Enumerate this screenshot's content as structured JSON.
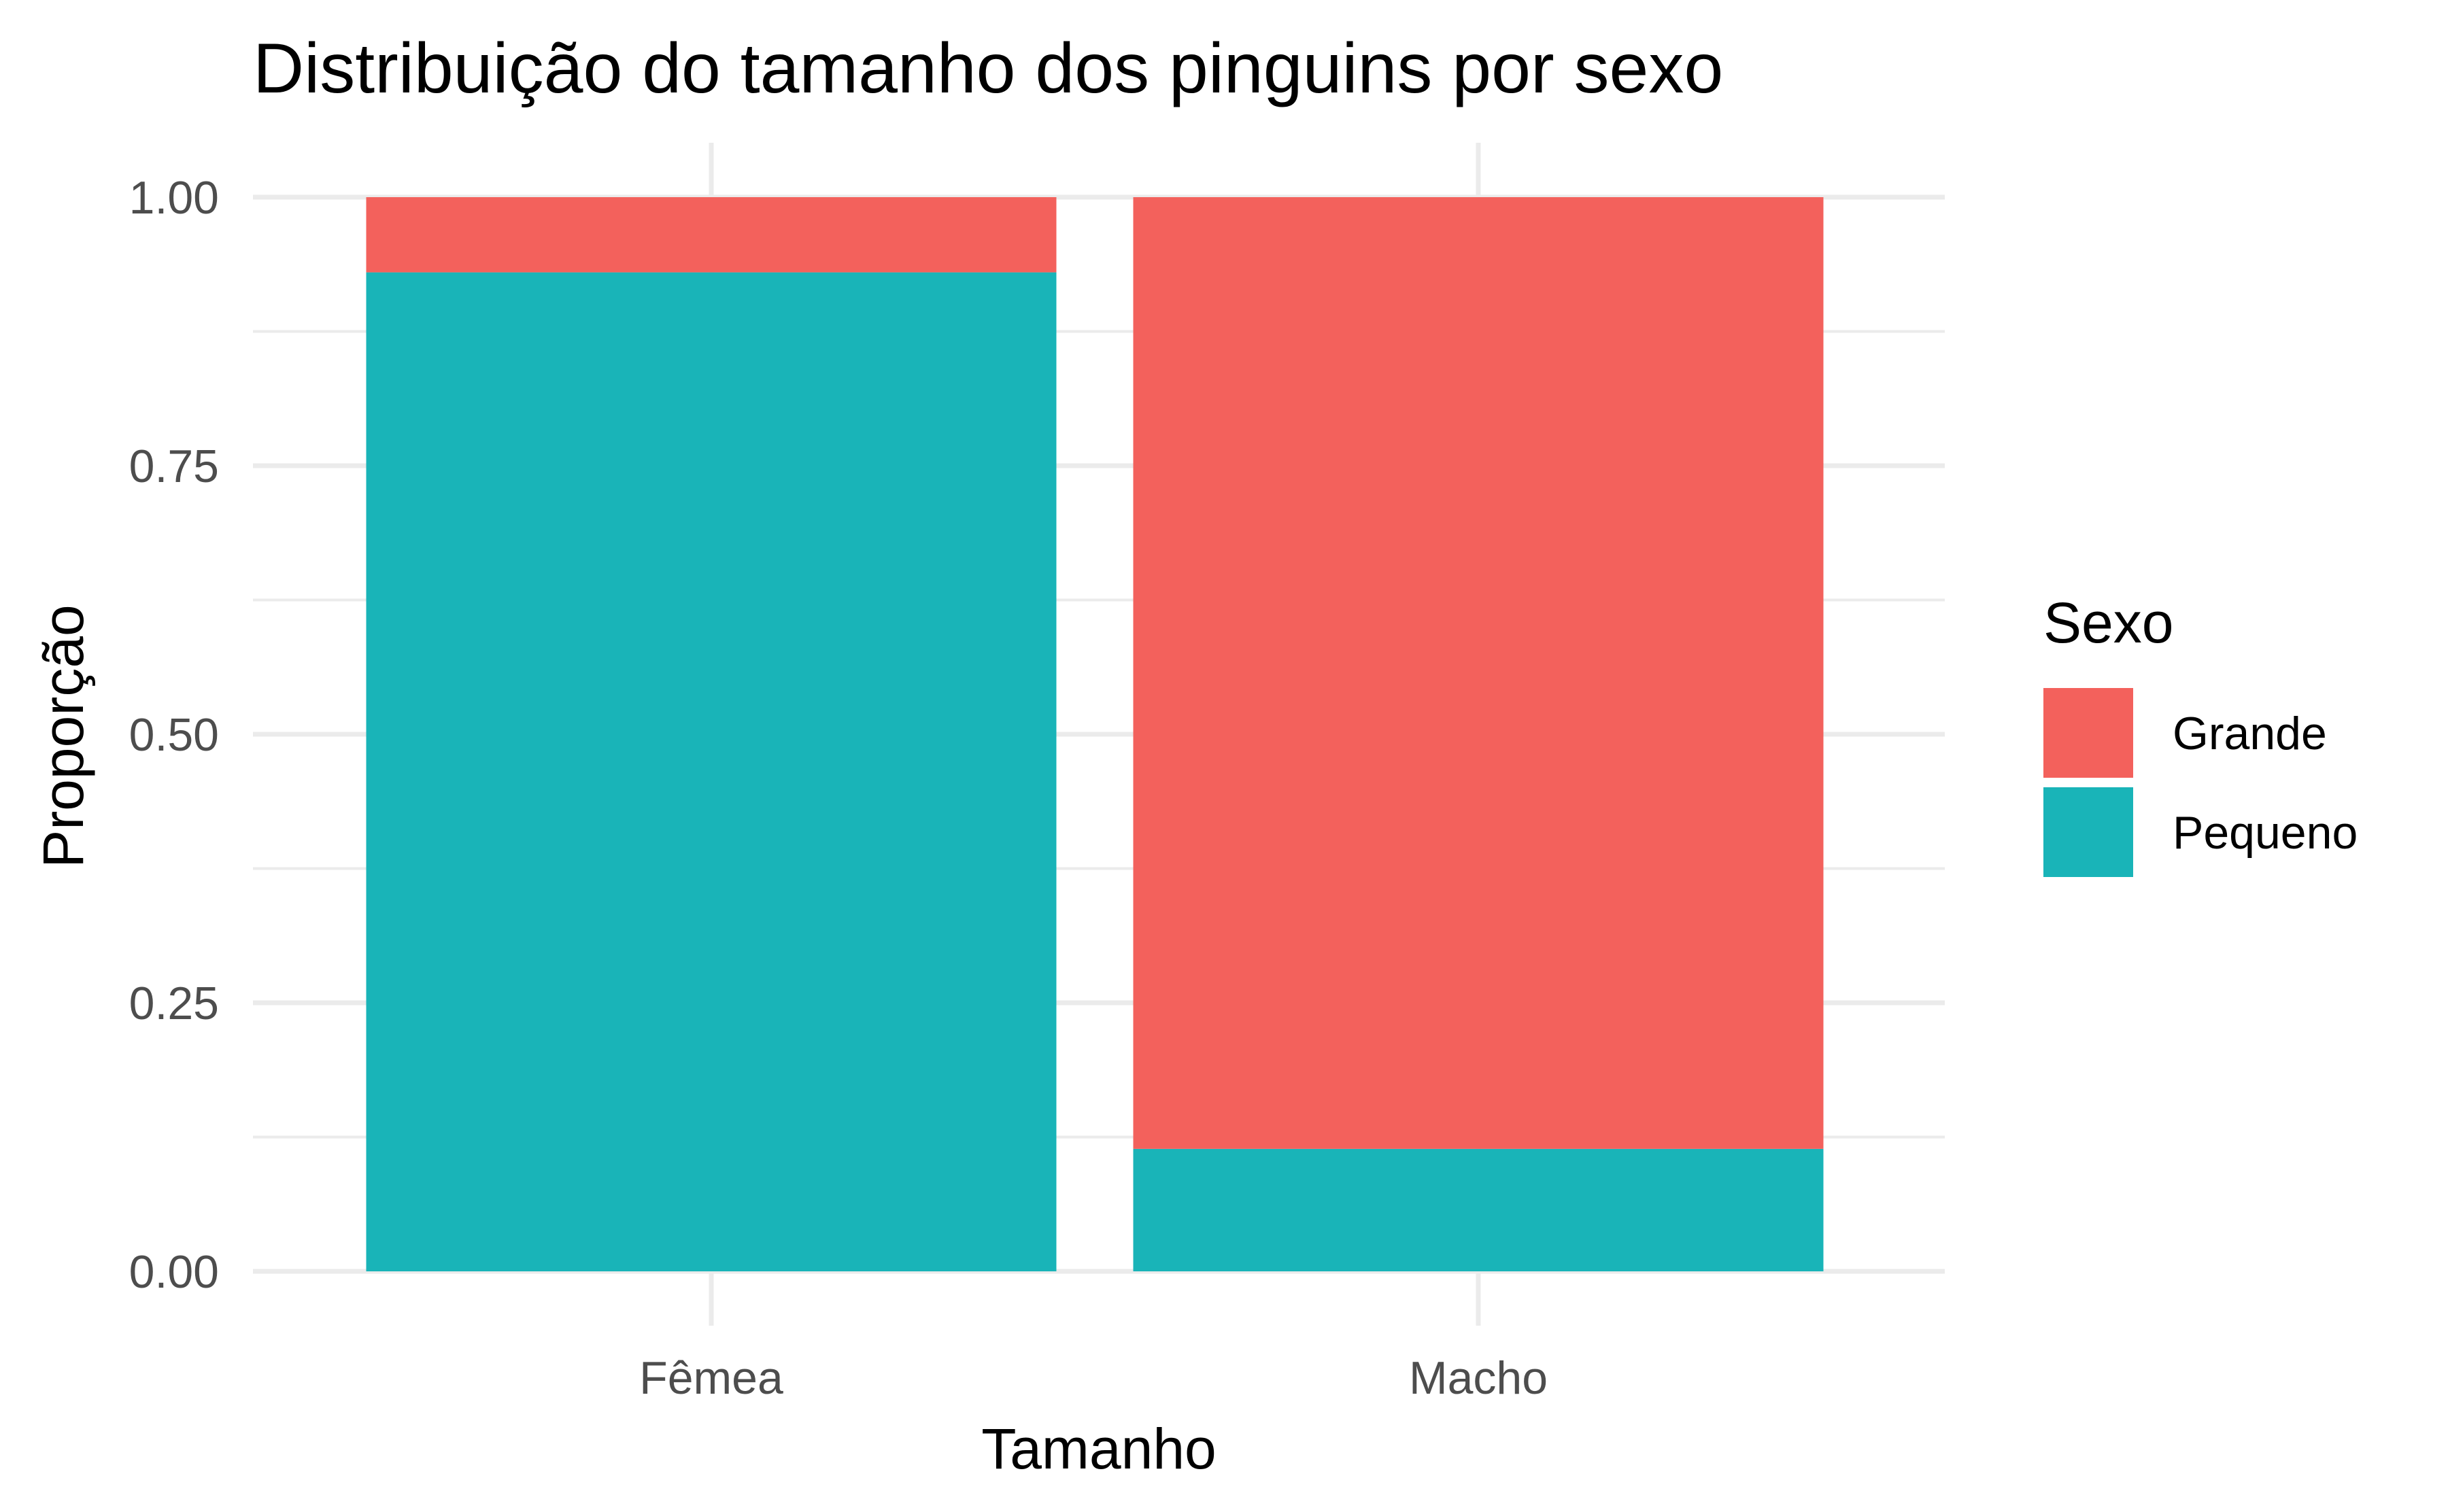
{
  "chart_data": {
    "type": "bar",
    "stacked": true,
    "title": "Distribuição do tamanho dos pinguins por sexo",
    "xlabel": "Tamanho",
    "ylabel": "Proporção",
    "categories": [
      "Fêmea",
      "Macho"
    ],
    "series": [
      {
        "name": "Grande",
        "values": [
          0.07,
          0.886
        ],
        "color": "#F3615C"
      },
      {
        "name": "Pequeno",
        "values": [
          0.93,
          0.114
        ],
        "color": "#19B4B8"
      }
    ],
    "ylim": [
      0,
      1
    ],
    "yticks": [
      0,
      0.25,
      0.5,
      0.75,
      1
    ],
    "ytick_labels": [
      "0.00",
      "0.25",
      "0.50",
      "0.75",
      "1.00"
    ],
    "grid": true,
    "legend": {
      "title": "Sexo",
      "position": "right"
    }
  }
}
